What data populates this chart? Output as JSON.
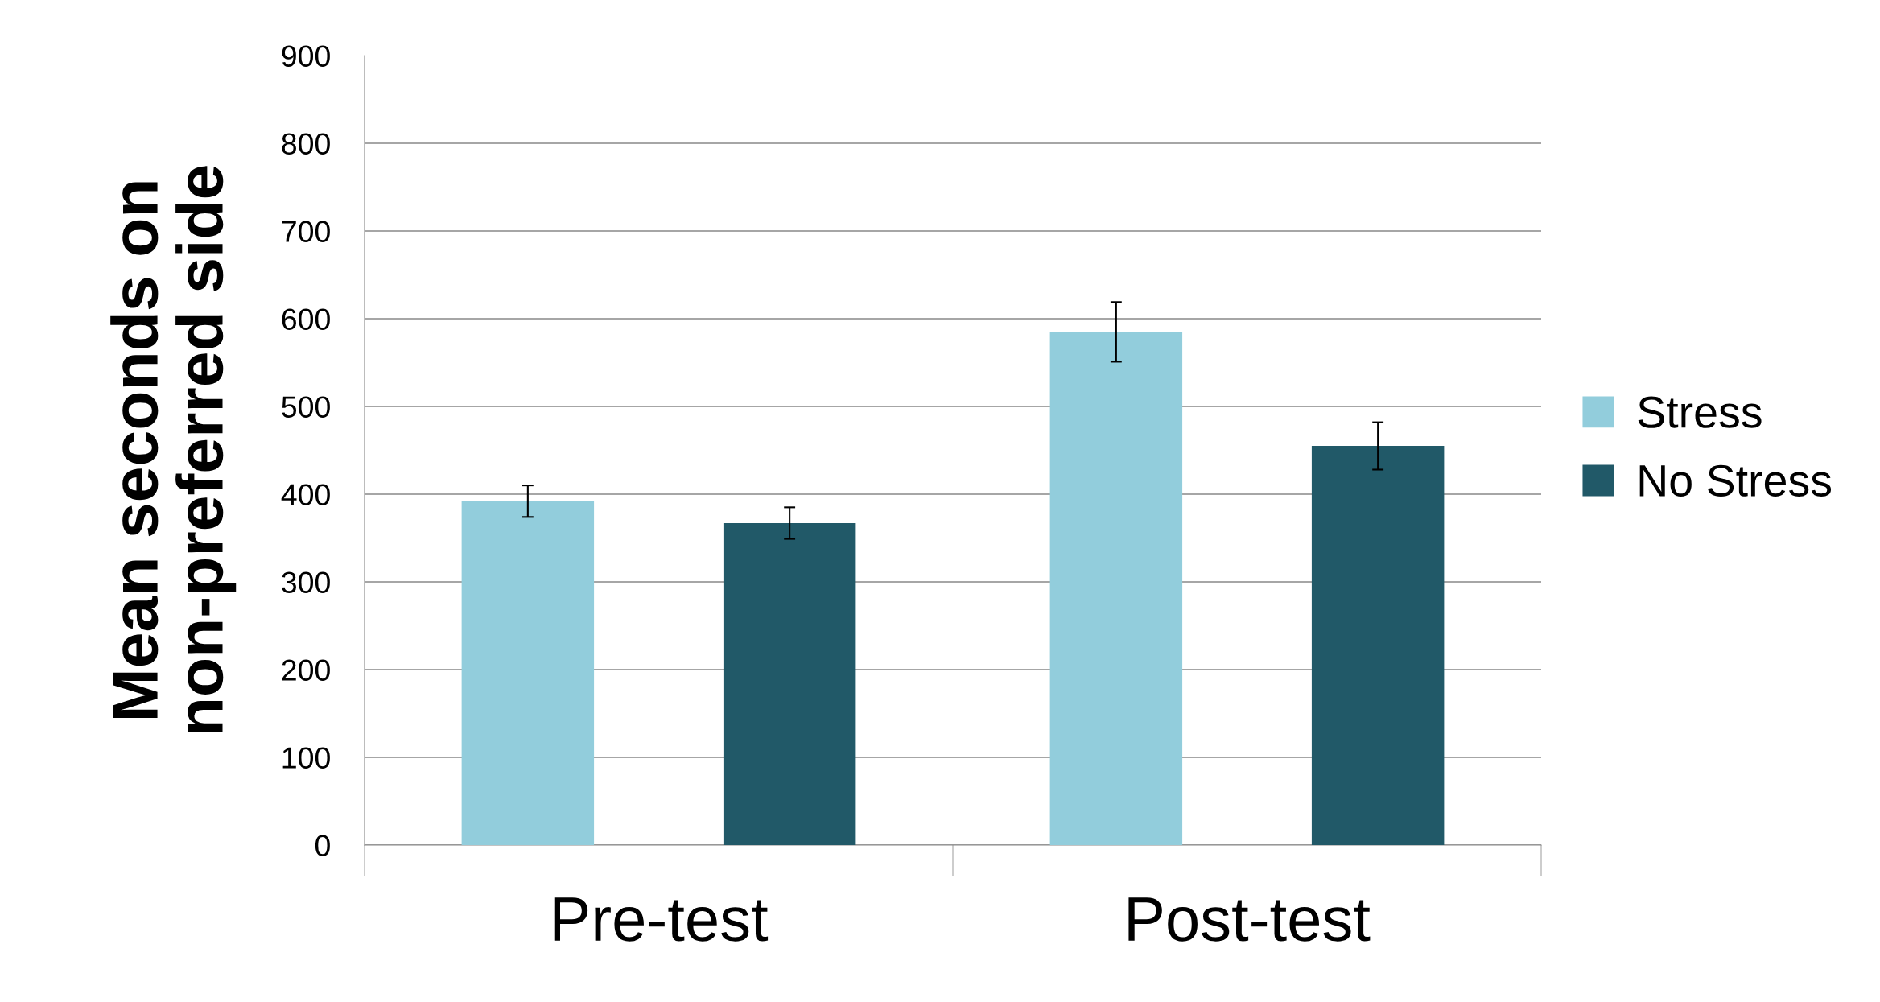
{
  "chart_data": {
    "type": "bar",
    "ylabel": "Mean seconds on\nnon-preferred side",
    "categories": [
      "Pre-test",
      "Post-test"
    ],
    "series": [
      {
        "name": "Stress",
        "color": "#92cddc",
        "values": [
          392,
          585
        ],
        "errors": [
          18,
          34
        ]
      },
      {
        "name": "No Stress",
        "color": "#215968",
        "values": [
          367,
          455
        ],
        "errors": [
          18,
          27
        ]
      }
    ],
    "ylim": [
      0,
      900
    ],
    "yticks": [
      0,
      100,
      200,
      300,
      400,
      500,
      600,
      700,
      800,
      900
    ],
    "grid": "y",
    "legend": "right"
  }
}
